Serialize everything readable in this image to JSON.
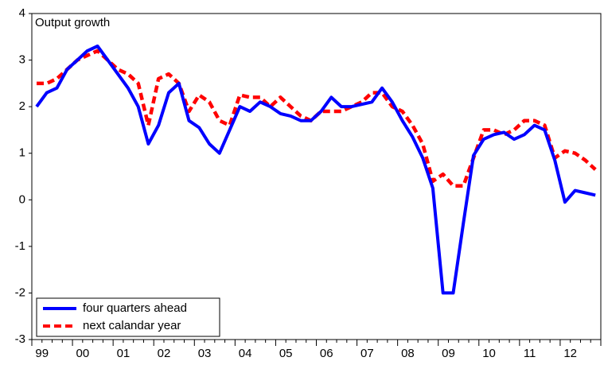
{
  "chart_data": {
    "type": "line",
    "title": "Output growth",
    "categories": [
      null,
      "99",
      null,
      null,
      null,
      "00",
      null,
      null,
      null,
      "01",
      null,
      null,
      null,
      "02",
      null,
      null,
      null,
      "03",
      null,
      null,
      null,
      "04",
      null,
      null,
      null,
      "05",
      null,
      null,
      null,
      "06",
      null,
      null,
      null,
      "07",
      null,
      null,
      null,
      "08",
      null,
      null,
      null,
      "09",
      null,
      null,
      null,
      "10",
      null,
      null,
      null,
      "11",
      null,
      null,
      null,
      "12",
      null,
      null
    ],
    "series": [
      {
        "name": "four quarters ahead",
        "color": "#0000ff",
        "dashed": false,
        "values": [
          2.0,
          2.3,
          2.4,
          2.8,
          3.0,
          3.2,
          3.3,
          3.0,
          2.7,
          2.4,
          2.0,
          1.2,
          1.6,
          2.3,
          2.5,
          1.7,
          1.55,
          1.2,
          1.0,
          1.5,
          2.0,
          1.9,
          2.1,
          2.0,
          1.85,
          1.8,
          1.7,
          1.7,
          1.9,
          2.2,
          2.0,
          2.0,
          2.05,
          2.1,
          2.4,
          2.1,
          1.7,
          1.35,
          0.9,
          0.25,
          -2.0,
          -2.0,
          -0.5,
          0.95,
          1.3,
          1.4,
          1.45,
          1.3,
          1.4,
          1.6,
          1.5,
          0.85,
          -0.05,
          0.2,
          0.15,
          0.1
        ]
      },
      {
        "name": "next calandar year",
        "color": "#ff0000",
        "dashed": true,
        "values": [
          2.5,
          2.5,
          2.6,
          2.8,
          3.0,
          3.1,
          3.2,
          3.0,
          2.8,
          2.7,
          2.5,
          1.6,
          2.6,
          2.7,
          2.5,
          1.9,
          2.25,
          2.1,
          1.7,
          1.6,
          2.25,
          2.2,
          2.2,
          2.0,
          2.2,
          2.0,
          1.8,
          1.7,
          1.9,
          1.9,
          1.9,
          2.0,
          2.1,
          2.3,
          2.3,
          2.0,
          1.9,
          1.6,
          1.2,
          0.4,
          0.55,
          0.3,
          0.3,
          0.9,
          1.5,
          1.5,
          1.4,
          1.5,
          1.7,
          1.7,
          1.6,
          0.9,
          1.05,
          1.0,
          0.85,
          0.65
        ]
      }
    ],
    "ylim": [
      -3,
      4
    ],
    "yticks": [
      -3,
      -2,
      -1,
      0,
      1,
      2,
      3,
      4
    ],
    "grid": false,
    "legend": "lower left"
  }
}
